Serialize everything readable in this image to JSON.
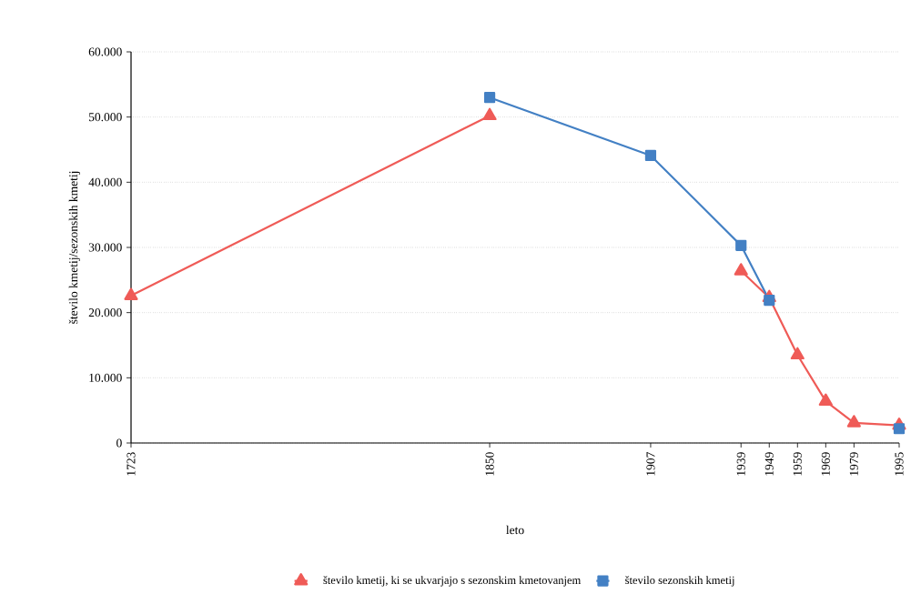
{
  "chart_data": {
    "type": "line",
    "xlabel": "leto",
    "ylabel": "število kmetij/sezonskih kmetij",
    "xlim": [
      1723,
      1995
    ],
    "xticks": [
      1723,
      1850,
      1907,
      1939,
      1949,
      1959,
      1969,
      1979,
      1995
    ],
    "ylim": [
      0,
      60000
    ],
    "yticks": [
      0,
      {
        "value": 10000,
        "label": "10.000"
      },
      {
        "value": 20000,
        "label": "20.000"
      },
      {
        "value": 30000,
        "label": "30.000"
      },
      {
        "value": 40000,
        "label": "40.000"
      },
      {
        "value": 50000,
        "label": "50.000"
      },
      {
        "value": 60000,
        "label": "60.000"
      }
    ],
    "grid": "y",
    "legend": "bottom",
    "series": [
      {
        "name": "število kmetij, ki se ukvarjajo s sezonskim kmetovanjem",
        "color": "#ef5b57",
        "marker": "triangle",
        "x": [
          1723,
          1850,
          1907,
          1939,
          1949,
          1959,
          1969,
          1979,
          1995
        ],
        "values": [
          22600,
          50200,
          null,
          26400,
          22300,
          13500,
          6400,
          3100,
          2700
        ]
      },
      {
        "name": "število sezonskih kmetij",
        "color": "#4380c4",
        "marker": "square",
        "x": [
          1850,
          1907,
          1939,
          1949,
          1959,
          1969,
          1979,
          1995
        ],
        "values": [
          53000,
          44100,
          30300,
          21900,
          null,
          null,
          null,
          2200
        ]
      }
    ]
  }
}
